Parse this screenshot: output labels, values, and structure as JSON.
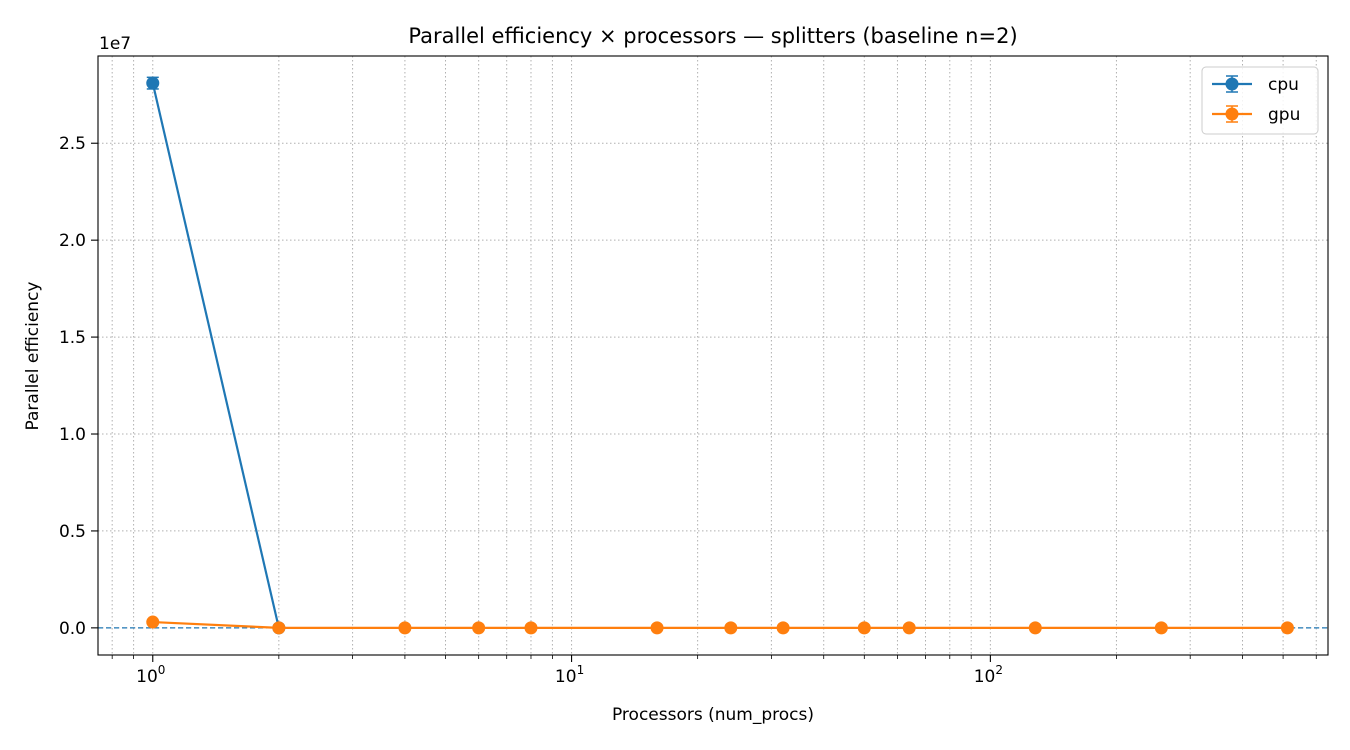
{
  "chart_data": {
    "type": "line",
    "title": "Parallel efficiency × processors — splitters (baseline n=2)",
    "xlabel": "Processors (num_procs)",
    "ylabel": "Parallel efficiency",
    "y_offset_text": "1e7",
    "xscale": "log",
    "xlim": [
      0.74,
      640
    ],
    "ylim": [
      -1400000,
      29500000
    ],
    "x_tick_labels": [
      {
        "base": "10",
        "exp": "0",
        "value": 1
      },
      {
        "base": "10",
        "exp": "1",
        "value": 10
      },
      {
        "base": "10",
        "exp": "2",
        "value": 100
      }
    ],
    "y_ticks": [
      {
        "value": 0,
        "label": "0.0"
      },
      {
        "value": 5000000,
        "label": "0.5"
      },
      {
        "value": 10000000,
        "label": "1.0"
      },
      {
        "value": 15000000,
        "label": "1.5"
      },
      {
        "value": 20000000,
        "label": "2.0"
      },
      {
        "value": 25000000,
        "label": "2.5"
      }
    ],
    "grid": true,
    "grid_style": "dotted",
    "reference_line": {
      "y": 0,
      "style": "dashed",
      "color": "#1f77b4"
    },
    "legend": {
      "position": "top-right"
    },
    "series": [
      {
        "name": "cpu",
        "color": "#1f77b4",
        "x": [
          1,
          2
        ],
        "y": [
          28100000,
          0
        ],
        "yerr": [
          300000,
          0
        ]
      },
      {
        "name": "gpu",
        "color": "#ff7f0e",
        "x": [
          1,
          2,
          4,
          6,
          8,
          16,
          24,
          32,
          50,
          64,
          128,
          256,
          512
        ],
        "y": [
          300000,
          0,
          0,
          0,
          0,
          0,
          0,
          0,
          0,
          0,
          0,
          0,
          0
        ],
        "yerr": [
          0,
          0,
          0,
          0,
          0,
          0,
          0,
          0,
          0,
          0,
          0,
          0,
          0
        ]
      }
    ]
  }
}
